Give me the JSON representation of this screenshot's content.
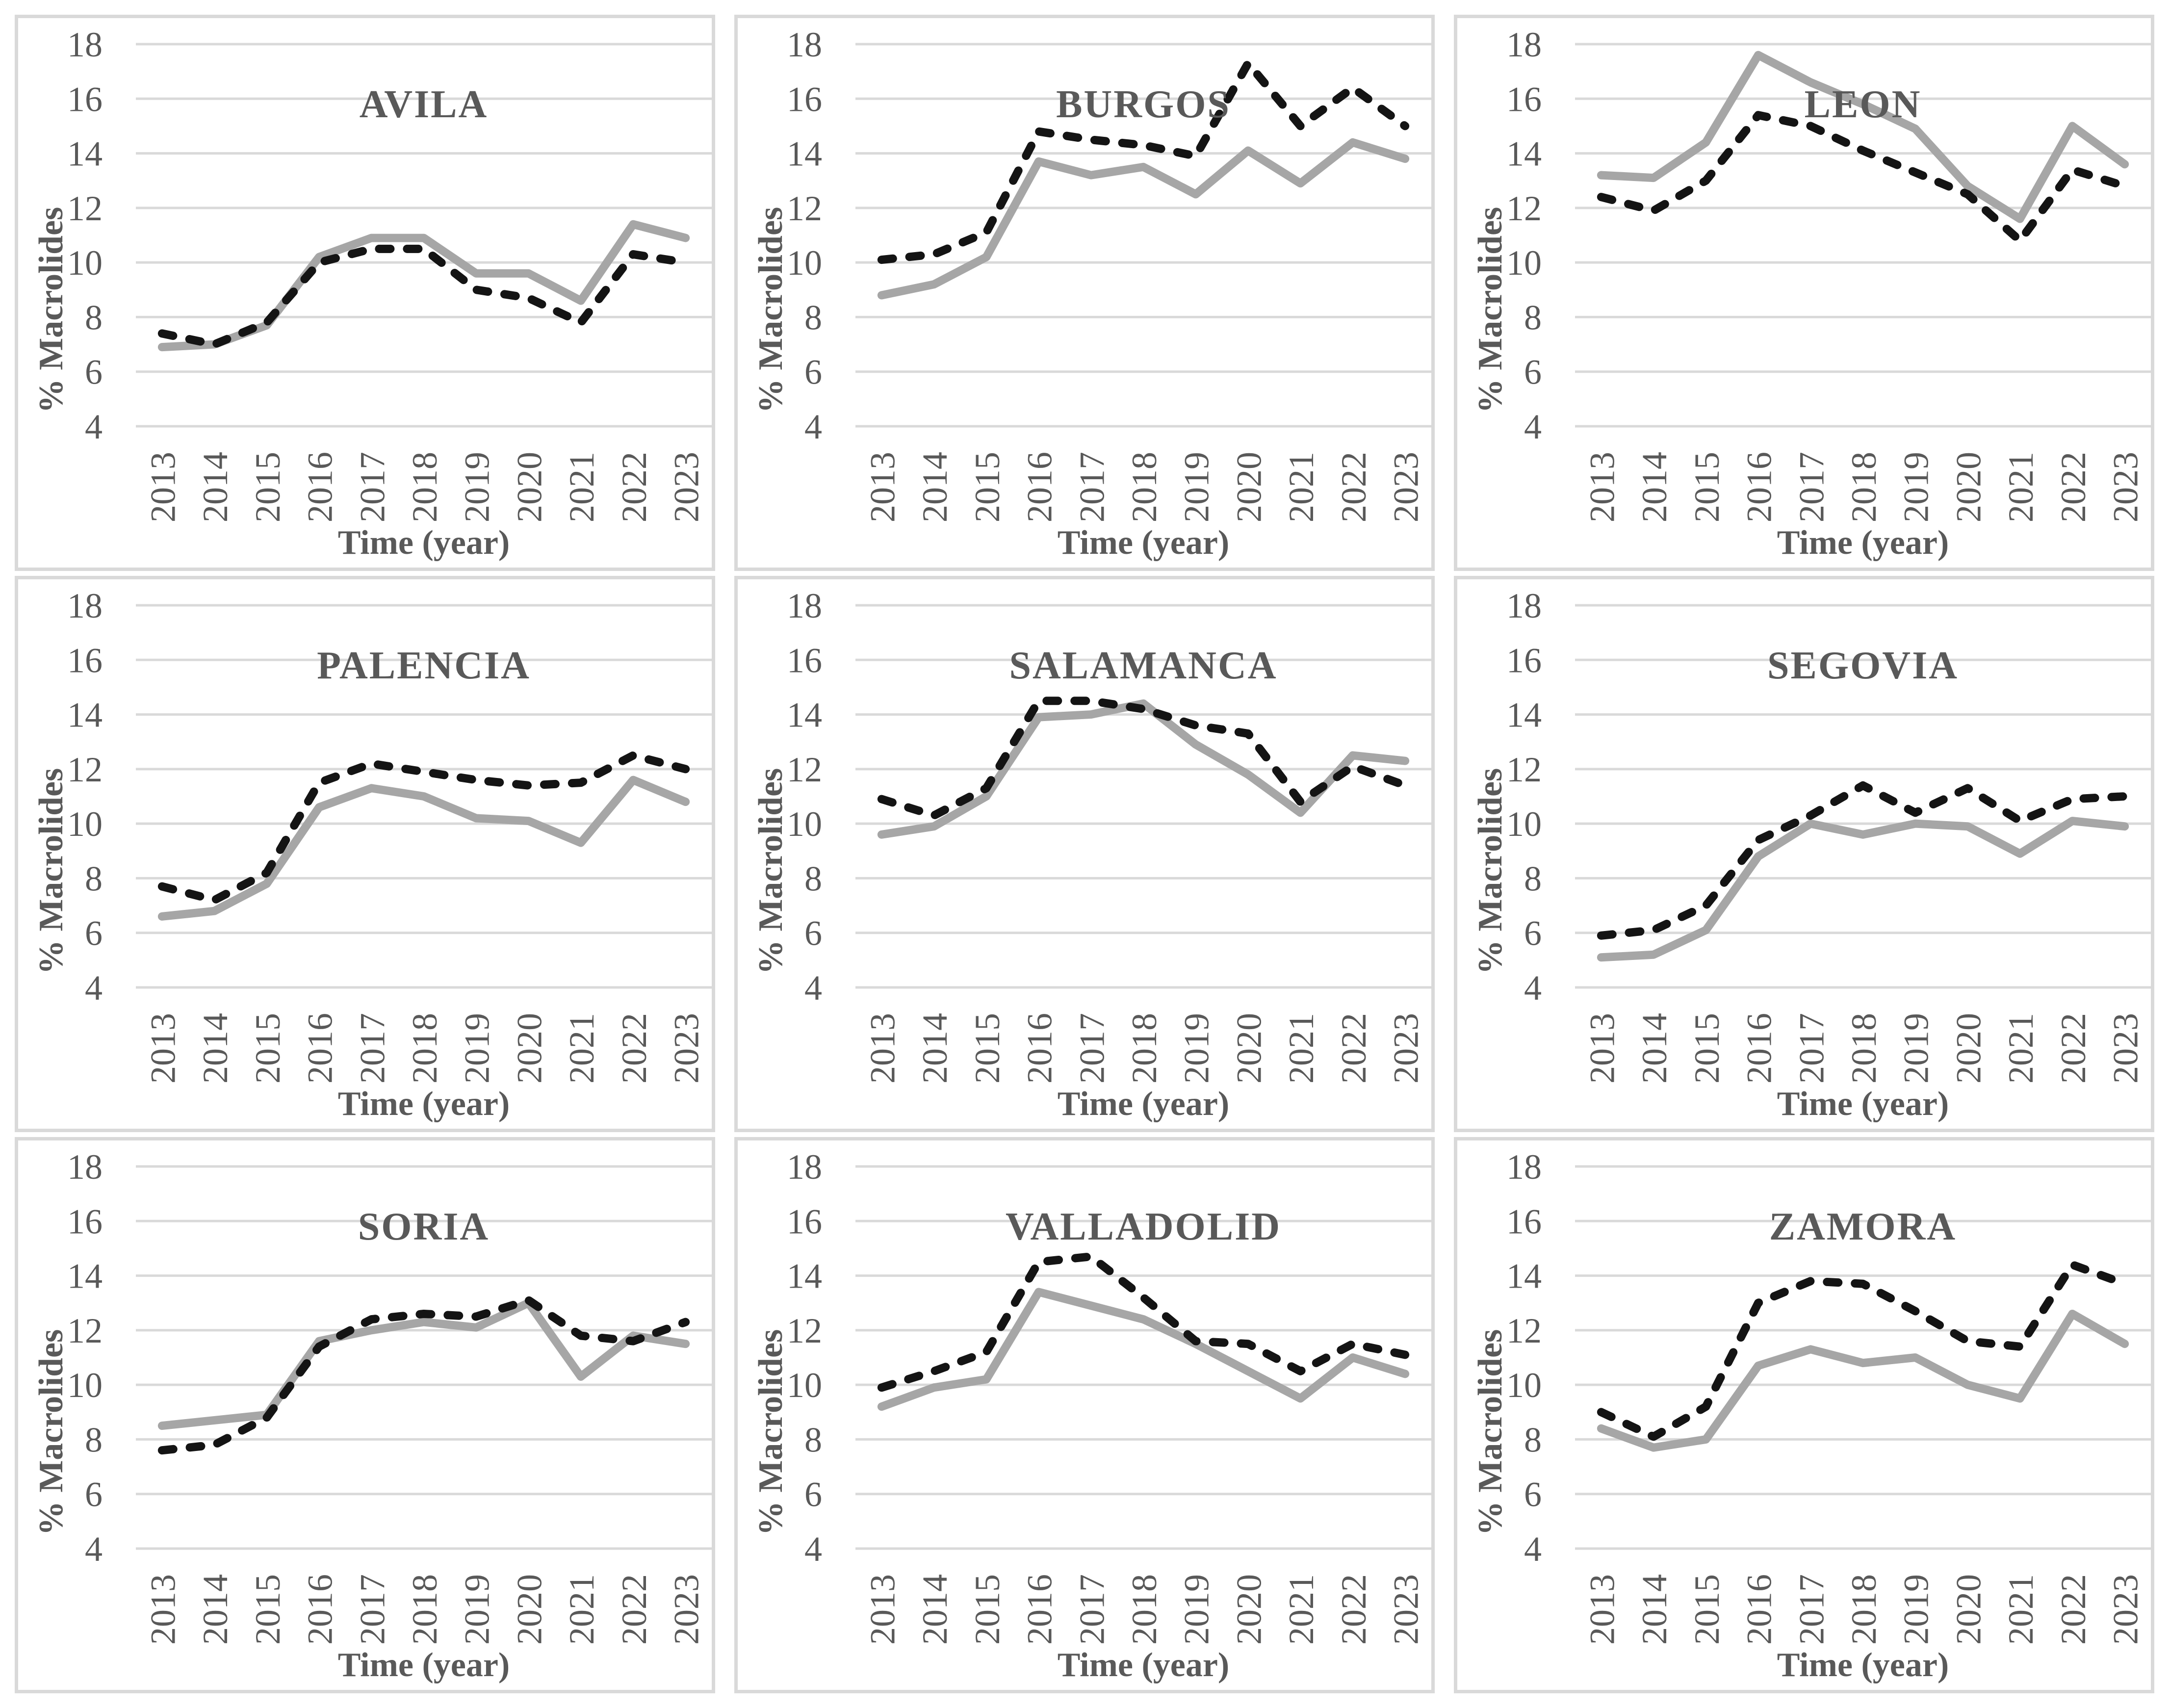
{
  "figure": {
    "ylabel": "% Macrolides",
    "xlabel": "Time (year)"
  },
  "colors": {
    "dashed_series": "#141414",
    "solid_series": "#a6a6a6",
    "gridline": "#d9d9d9",
    "panel_border": "#d9d9d9",
    "text": "#595959"
  },
  "chart_data": [
    {
      "type": "line",
      "title": "AVILA",
      "xlabel": "Time (year)",
      "ylabel": "% Macrolides",
      "ylim": [
        4,
        18
      ],
      "yticks": [
        4,
        6,
        8,
        10,
        12,
        14,
        16,
        18
      ],
      "grid": "horizontal",
      "legend": "none",
      "categories": [
        2013,
        2014,
        2015,
        2016,
        2017,
        2018,
        2019,
        2020,
        2021,
        2022,
        2023
      ],
      "series": [
        {
          "name": "dashed-black",
          "style": "dashed",
          "values": [
            7.4,
            7.0,
            7.8,
            10.0,
            10.5,
            10.5,
            9.0,
            8.7,
            7.8,
            10.3,
            10.0
          ]
        },
        {
          "name": "solid-gray",
          "style": "solid",
          "values": [
            6.9,
            7.0,
            7.7,
            10.2,
            10.9,
            10.9,
            9.6,
            9.6,
            8.6,
            11.4,
            10.9
          ]
        }
      ]
    },
    {
      "type": "line",
      "title": "BURGOS",
      "xlabel": "Time (year)",
      "ylabel": "% Macrolides",
      "ylim": [
        4,
        18
      ],
      "yticks": [
        4,
        6,
        8,
        10,
        12,
        14,
        16,
        18
      ],
      "grid": "horizontal",
      "legend": "none",
      "categories": [
        2013,
        2014,
        2015,
        2016,
        2017,
        2018,
        2019,
        2020,
        2021,
        2022,
        2023
      ],
      "series": [
        {
          "name": "dashed-black",
          "style": "dashed",
          "values": [
            10.1,
            10.3,
            11.1,
            14.8,
            14.5,
            14.3,
            13.9,
            17.3,
            15.0,
            16.4,
            15.0
          ]
        },
        {
          "name": "solid-gray",
          "style": "solid",
          "values": [
            8.8,
            9.2,
            10.2,
            13.7,
            13.2,
            13.5,
            12.5,
            14.1,
            12.9,
            14.4,
            13.8
          ]
        }
      ]
    },
    {
      "type": "line",
      "title": "LEON",
      "xlabel": "Time (year)",
      "ylabel": "% Macrolides",
      "ylim": [
        4,
        18
      ],
      "yticks": [
        4,
        6,
        8,
        10,
        12,
        14,
        16,
        18
      ],
      "grid": "horizontal",
      "legend": "none",
      "categories": [
        2013,
        2014,
        2015,
        2016,
        2017,
        2018,
        2019,
        2020,
        2021,
        2022,
        2023
      ],
      "series": [
        {
          "name": "dashed-black",
          "style": "dashed",
          "values": [
            12.4,
            11.9,
            13.0,
            15.4,
            15.0,
            14.1,
            13.3,
            12.5,
            10.8,
            13.4,
            12.8
          ]
        },
        {
          "name": "solid-gray",
          "style": "solid",
          "values": [
            13.2,
            13.1,
            14.4,
            17.6,
            16.6,
            15.8,
            14.9,
            12.8,
            11.6,
            15.0,
            13.6
          ]
        }
      ]
    },
    {
      "type": "line",
      "title": "PALENCIA",
      "xlabel": "Time (year)",
      "ylabel": "% Macrolides",
      "ylim": [
        4,
        18
      ],
      "yticks": [
        4,
        6,
        8,
        10,
        12,
        14,
        16,
        18
      ],
      "grid": "horizontal",
      "legend": "none",
      "categories": [
        2013,
        2014,
        2015,
        2016,
        2017,
        2018,
        2019,
        2020,
        2021,
        2022,
        2023
      ],
      "series": [
        {
          "name": "dashed-black",
          "style": "dashed",
          "values": [
            7.7,
            7.2,
            8.2,
            11.5,
            12.2,
            11.9,
            11.6,
            11.4,
            11.5,
            12.5,
            12.0
          ]
        },
        {
          "name": "solid-gray",
          "style": "solid",
          "values": [
            6.6,
            6.8,
            7.8,
            10.6,
            11.3,
            11.0,
            10.2,
            10.1,
            9.3,
            11.6,
            10.8
          ]
        }
      ]
    },
    {
      "type": "line",
      "title": "SALAMANCA",
      "xlabel": "Time (year)",
      "ylabel": "% Macrolides",
      "ylim": [
        4,
        18
      ],
      "yticks": [
        4,
        6,
        8,
        10,
        12,
        14,
        16,
        18
      ],
      "grid": "horizontal",
      "legend": "none",
      "categories": [
        2013,
        2014,
        2015,
        2016,
        2017,
        2018,
        2019,
        2020,
        2021,
        2022,
        2023
      ],
      "series": [
        {
          "name": "dashed-black",
          "style": "dashed",
          "values": [
            10.9,
            10.3,
            11.3,
            14.5,
            14.5,
            14.2,
            13.6,
            13.3,
            10.8,
            12.1,
            11.4
          ]
        },
        {
          "name": "solid-gray",
          "style": "solid",
          "values": [
            9.6,
            9.9,
            11.0,
            13.9,
            14.0,
            14.4,
            12.9,
            11.8,
            10.4,
            12.5,
            12.3
          ]
        }
      ]
    },
    {
      "type": "line",
      "title": "SEGOVIA",
      "xlabel": "Time (year)",
      "ylabel": "% Macrolides",
      "ylim": [
        4,
        18
      ],
      "yticks": [
        4,
        6,
        8,
        10,
        12,
        14,
        16,
        18
      ],
      "grid": "horizontal",
      "legend": "none",
      "categories": [
        2013,
        2014,
        2015,
        2016,
        2017,
        2018,
        2019,
        2020,
        2021,
        2022,
        2023
      ],
      "series": [
        {
          "name": "dashed-black",
          "style": "dashed",
          "values": [
            5.9,
            6.1,
            7.0,
            9.4,
            10.3,
            11.4,
            10.4,
            11.3,
            10.1,
            10.9,
            11.0
          ]
        },
        {
          "name": "solid-gray",
          "style": "solid",
          "values": [
            5.1,
            5.2,
            6.1,
            8.8,
            10.0,
            9.6,
            10.0,
            9.9,
            8.9,
            10.1,
            9.9
          ]
        }
      ]
    },
    {
      "type": "line",
      "title": "SORIA",
      "xlabel": "Time (year)",
      "ylabel": "% Macrolides",
      "ylim": [
        4,
        18
      ],
      "yticks": [
        4,
        6,
        8,
        10,
        12,
        14,
        16,
        18
      ],
      "grid": "horizontal",
      "legend": "none",
      "categories": [
        2013,
        2014,
        2015,
        2016,
        2017,
        2018,
        2019,
        2020,
        2021,
        2022,
        2023
      ],
      "series": [
        {
          "name": "dashed-black",
          "style": "dashed",
          "values": [
            7.6,
            7.8,
            8.8,
            11.4,
            12.4,
            12.6,
            12.5,
            13.1,
            11.8,
            11.6,
            12.3
          ]
        },
        {
          "name": "solid-gray",
          "style": "solid",
          "values": [
            8.5,
            8.7,
            8.9,
            11.6,
            12.0,
            12.3,
            12.1,
            13.0,
            10.3,
            11.8,
            11.5
          ]
        }
      ]
    },
    {
      "type": "line",
      "title": "VALLADOLID",
      "xlabel": "Time (year)",
      "ylabel": "% Macrolides",
      "ylim": [
        4,
        18
      ],
      "yticks": [
        4,
        6,
        8,
        10,
        12,
        14,
        16,
        18
      ],
      "grid": "horizontal",
      "legend": "none",
      "categories": [
        2013,
        2014,
        2015,
        2016,
        2017,
        2018,
        2019,
        2020,
        2021,
        2022,
        2023
      ],
      "series": [
        {
          "name": "dashed-black",
          "style": "dashed",
          "values": [
            9.9,
            10.5,
            11.2,
            14.5,
            14.7,
            13.2,
            11.6,
            11.5,
            10.5,
            11.5,
            11.1
          ]
        },
        {
          "name": "solid-gray",
          "style": "solid",
          "values": [
            9.2,
            9.9,
            10.2,
            13.4,
            12.9,
            12.4,
            11.5,
            10.5,
            9.5,
            11.0,
            10.4
          ]
        }
      ]
    },
    {
      "type": "line",
      "title": "ZAMORA",
      "xlabel": "Time (year)",
      "ylabel": "% Macrolides",
      "ylim": [
        4,
        18
      ],
      "yticks": [
        4,
        6,
        8,
        10,
        12,
        14,
        16,
        18
      ],
      "grid": "horizontal",
      "legend": "none",
      "categories": [
        2013,
        2014,
        2015,
        2016,
        2017,
        2018,
        2019,
        2020,
        2021,
        2022,
        2023
      ],
      "series": [
        {
          "name": "dashed-black",
          "style": "dashed",
          "values": [
            9.0,
            8.1,
            9.2,
            13.0,
            13.8,
            13.7,
            12.7,
            11.6,
            11.4,
            14.4,
            13.7
          ]
        },
        {
          "name": "solid-gray",
          "style": "solid",
          "values": [
            8.4,
            7.7,
            8.0,
            10.7,
            11.3,
            10.8,
            11.0,
            10.0,
            9.5,
            12.6,
            11.5
          ]
        }
      ]
    }
  ]
}
